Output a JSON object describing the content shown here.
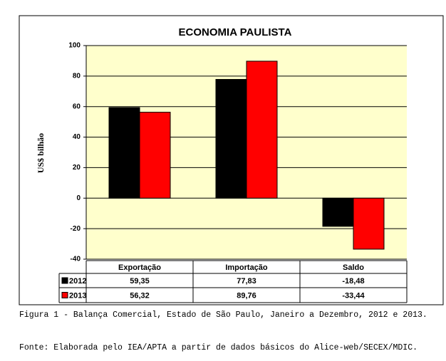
{
  "chart_data": {
    "type": "bar",
    "title": "ECONOMIA PAULISTA",
    "y_label": "US$ bilhão",
    "categories": [
      "Exportação",
      "Importação",
      "Saldo"
    ],
    "series": [
      {
        "name": "2012",
        "color": "#000000",
        "values": [
          59.35,
          77.83,
          -18.48
        ],
        "value_labels": [
          "59,35",
          "77,83",
          "-18,48"
        ]
      },
      {
        "name": "2013",
        "color": "#ff0000",
        "values": [
          56.32,
          89.76,
          -33.44
        ],
        "value_labels": [
          "56,32",
          "89,76",
          "-33,44"
        ]
      }
    ],
    "ylim": [
      -40,
      100
    ],
    "yticks": [
      -40,
      -20,
      0,
      20,
      40,
      60,
      80,
      100
    ],
    "grid": true,
    "caption": "Figura 1 - Balança Comercial, Estado de São Paulo, Janeiro a Dezembro, 2012 e 2013.",
    "source": "Fonte: Elaborada pelo IEA/APTA a partir de dados básicos do Alice-web/SECEX/MDIC."
  }
}
